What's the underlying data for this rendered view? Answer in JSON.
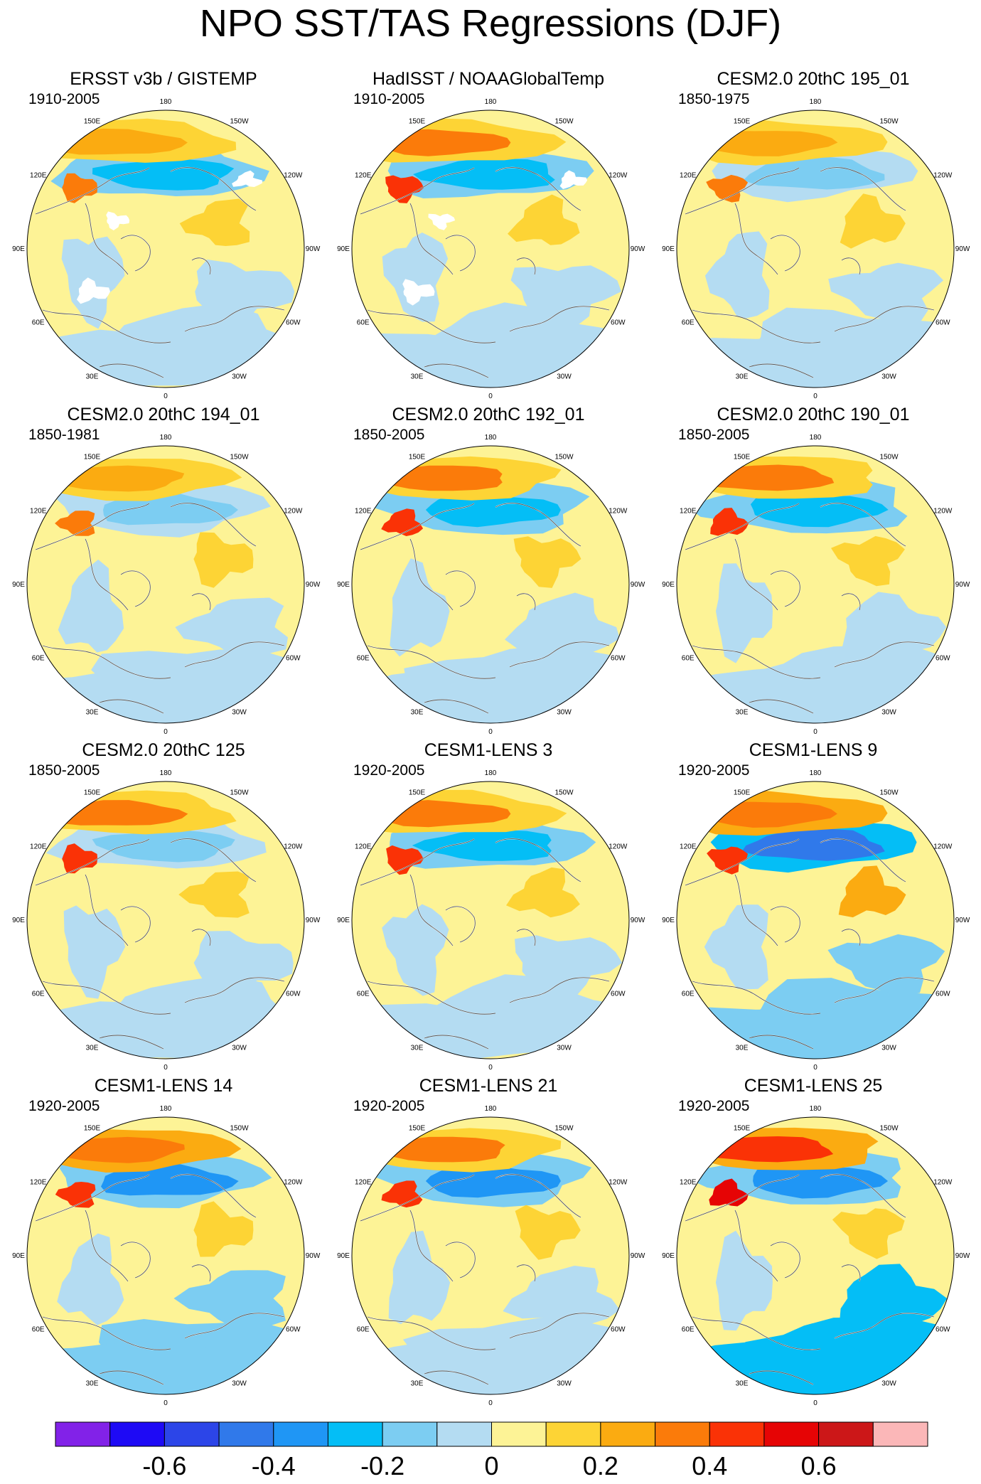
{
  "figure": {
    "title": "NPO SST/TAS Regressions (DJF)"
  },
  "lon_labels": [
    "180",
    "150E",
    "120E",
    "90E",
    "60E",
    "30E",
    "0",
    "30W",
    "60W",
    "90W",
    "120W",
    "150W"
  ],
  "panels": [
    {
      "title": "ERSST v3b / GISTEMP",
      "period": "1910-2005",
      "field": {
        "npac_warm": 0.25,
        "npac_cold": -0.25,
        "atl_cold": -0.1,
        "land_warm": 0.15,
        "missing": true
      }
    },
    {
      "title": "HadISST / NOAAGlobalTemp",
      "period": "1910-2005",
      "field": {
        "npac_warm": 0.3,
        "npac_cold": -0.3,
        "atl_cold": -0.1,
        "land_warm": 0.15,
        "missing": true
      }
    },
    {
      "title": "CESM2.0 20thC 195_01",
      "period": "1850-1975",
      "field": {
        "npac_warm": 0.2,
        "npac_cold": -0.15,
        "atl_cold": -0.1,
        "land_warm": 0.1,
        "missing": false
      }
    },
    {
      "title": "CESM2.0 20thC 194_01",
      "period": "1850-1981",
      "field": {
        "npac_warm": 0.25,
        "npac_cold": -0.15,
        "atl_cold": -0.1,
        "land_warm": 0.15,
        "missing": false
      }
    },
    {
      "title": "CESM2.0 20thC 192_01",
      "period": "1850-2005",
      "field": {
        "npac_warm": 0.3,
        "npac_cold": -0.3,
        "atl_cold": -0.1,
        "land_warm": 0.1,
        "missing": false
      }
    },
    {
      "title": "CESM2.0 20thC 190_01",
      "period": "1850-2005",
      "field": {
        "npac_warm": 0.3,
        "npac_cold": -0.25,
        "atl_cold": -0.1,
        "land_warm": 0.15,
        "missing": false
      }
    },
    {
      "title": "CESM2.0 20thC 125",
      "period": "1850-2005",
      "field": {
        "npac_warm": 0.3,
        "npac_cold": -0.2,
        "atl_cold": -0.1,
        "land_warm": 0.1,
        "missing": false
      }
    },
    {
      "title": "CESM1-LENS 3",
      "period": "1920-2005",
      "field": {
        "npac_warm": 0.3,
        "npac_cold": -0.3,
        "atl_cold": -0.1,
        "land_warm": 0.15,
        "missing": false
      }
    },
    {
      "title": "CESM1-LENS 9",
      "period": "1920-2005",
      "field": {
        "npac_warm": 0.35,
        "npac_cold": -0.45,
        "atl_cold": -0.15,
        "land_warm": 0.2,
        "missing": false
      }
    },
    {
      "title": "CESM1-LENS 14",
      "period": "1920-2005",
      "field": {
        "npac_warm": 0.35,
        "npac_cold": -0.35,
        "atl_cold": -0.2,
        "land_warm": 0.15,
        "missing": false
      }
    },
    {
      "title": "CESM1-LENS 21",
      "period": "1920-2005",
      "field": {
        "npac_warm": 0.3,
        "npac_cold": -0.4,
        "atl_cold": -0.1,
        "land_warm": 0.1,
        "missing": false
      }
    },
    {
      "title": "CESM1-LENS 25",
      "period": "1920-2005",
      "field": {
        "npac_warm": 0.45,
        "npac_cold": -0.35,
        "atl_cold": -0.25,
        "land_warm": 0.15,
        "missing": false
      }
    }
  ],
  "colorbar": {
    "levels": [
      -0.7,
      -0.6,
      -0.5,
      -0.4,
      -0.3,
      -0.2,
      -0.1,
      0,
      0.1,
      0.2,
      0.3,
      0.4,
      0.5,
      0.6,
      0.7
    ],
    "colors": [
      "#8222e8",
      "#1e0af5",
      "#2c45e8",
      "#3079ea",
      "#1f96f5",
      "#04bef6",
      "#7ccdf2",
      "#b4dcf2",
      "#fdf396",
      "#fdd435",
      "#fbab11",
      "#fb7b0a",
      "#fa3206",
      "#e60405",
      "#cc1718",
      "#fbb7b8"
    ],
    "labels": [
      "-0.6",
      "-0.4",
      "-0.2",
      "0",
      "0.2",
      "0.4",
      "0.6"
    ]
  },
  "chart_data": {
    "type": "heatmap",
    "title": "NPO SST/TAS Regressions (DJF)",
    "projection": "north polar stereographic",
    "colorbar_range": [
      -0.7,
      0.7
    ],
    "colorbar_step": 0.1,
    "colorbar_tick_labels": [
      -0.6,
      -0.4,
      -0.2,
      0,
      0.2,
      0.4,
      0.6
    ]
  }
}
